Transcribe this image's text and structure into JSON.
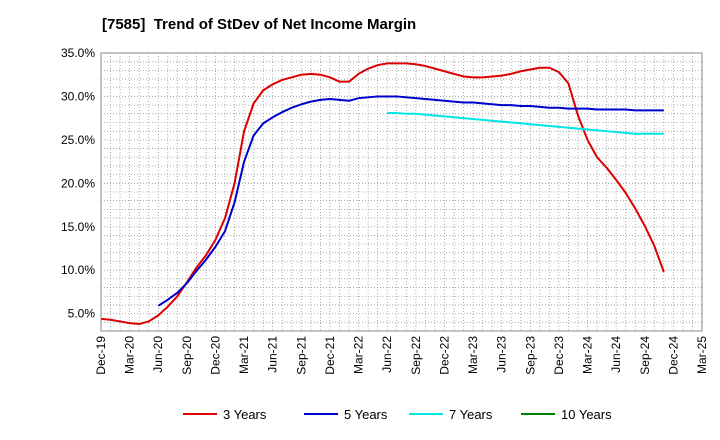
{
  "title": "[7585]  Trend of StDev of Net Income Margin",
  "chart_data": {
    "type": "line",
    "title": "[7585]  Trend of StDev of Net Income Margin",
    "xlabel": "",
    "ylabel": "",
    "ylim": [
      3.0,
      35.0
    ],
    "y_ticks": [
      "5.0%",
      "10.0%",
      "15.0%",
      "20.0%",
      "25.0%",
      "30.0%",
      "35.0%"
    ],
    "y_tick_values": [
      5,
      10,
      15,
      20,
      25,
      30,
      35
    ],
    "x_ticks": [
      "Dec-19",
      "Mar-20",
      "Jun-20",
      "Sep-20",
      "Dec-20",
      "Mar-21",
      "Jun-21",
      "Sep-21",
      "Dec-21",
      "Mar-22",
      "Jun-22",
      "Sep-22",
      "Dec-22",
      "Mar-23",
      "Jun-23",
      "Sep-23",
      "Dec-23",
      "Mar-24",
      "Jun-24",
      "Sep-24",
      "Dec-24",
      "Mar-25"
    ],
    "grid": true,
    "legend_position": "bottom",
    "series": [
      {
        "name": "3 Years",
        "color": "#dd0000",
        "points": [
          [
            "Dec-19",
            4.4
          ],
          [
            "Jan-20",
            4.3
          ],
          [
            "Feb-20",
            4.1
          ],
          [
            "Mar-20",
            3.9
          ],
          [
            "Apr-20",
            3.8
          ],
          [
            "May-20",
            4.1
          ],
          [
            "Jun-20",
            4.8
          ],
          [
            "Jul-20",
            5.8
          ],
          [
            "Aug-20",
            7.0
          ],
          [
            "Sep-20",
            8.6
          ],
          [
            "Oct-20",
            10.3
          ],
          [
            "Nov-20",
            11.7
          ],
          [
            "Dec-20",
            13.5
          ],
          [
            "Jan-21",
            16.0
          ],
          [
            "Feb-21",
            20.0
          ],
          [
            "Mar-21",
            26.0
          ],
          [
            "Apr-21",
            29.2
          ],
          [
            "May-21",
            30.7
          ],
          [
            "Jun-21",
            31.4
          ],
          [
            "Jul-21",
            31.9
          ],
          [
            "Aug-21",
            32.2
          ],
          [
            "Sep-21",
            32.5
          ],
          [
            "Oct-21",
            32.6
          ],
          [
            "Nov-21",
            32.5
          ],
          [
            "Dec-21",
            32.2
          ],
          [
            "Jan-22",
            31.7
          ],
          [
            "Feb-22",
            31.7
          ],
          [
            "Mar-22",
            32.6
          ],
          [
            "Apr-22",
            33.2
          ],
          [
            "May-22",
            33.6
          ],
          [
            "Jun-22",
            33.8
          ],
          [
            "Jul-22",
            33.8
          ],
          [
            "Aug-22",
            33.8
          ],
          [
            "Sep-22",
            33.7
          ],
          [
            "Oct-22",
            33.5
          ],
          [
            "Nov-22",
            33.2
          ],
          [
            "Dec-22",
            32.9
          ],
          [
            "Jan-23",
            32.6
          ],
          [
            "Feb-23",
            32.3
          ],
          [
            "Mar-23",
            32.2
          ],
          [
            "Apr-23",
            32.2
          ],
          [
            "May-23",
            32.3
          ],
          [
            "Jun-23",
            32.4
          ],
          [
            "Jul-23",
            32.6
          ],
          [
            "Aug-23",
            32.9
          ],
          [
            "Sep-23",
            33.1
          ],
          [
            "Oct-23",
            33.3
          ],
          [
            "Nov-23",
            33.3
          ],
          [
            "Dec-23",
            32.8
          ],
          [
            "Jan-24",
            31.5
          ],
          [
            "Feb-24",
            27.8
          ],
          [
            "Mar-24",
            25.0
          ],
          [
            "Apr-24",
            23.0
          ],
          [
            "May-24",
            21.8
          ],
          [
            "Jun-24",
            20.4
          ],
          [
            "Jul-24",
            18.9
          ],
          [
            "Aug-24",
            17.1
          ],
          [
            "Sep-24",
            15.1
          ],
          [
            "Oct-24",
            12.8
          ],
          [
            "Nov-24",
            9.8
          ]
        ]
      },
      {
        "name": "5 Years",
        "color": "#0000cc",
        "points": [
          [
            "Jun-20",
            5.9
          ],
          [
            "Jul-20",
            6.6
          ],
          [
            "Aug-20",
            7.4
          ],
          [
            "Sep-20",
            8.5
          ],
          [
            "Oct-20",
            9.9
          ],
          [
            "Nov-20",
            11.2
          ],
          [
            "Dec-20",
            12.7
          ],
          [
            "Jan-21",
            14.5
          ],
          [
            "Feb-21",
            17.8
          ],
          [
            "Mar-21",
            22.5
          ],
          [
            "Apr-21",
            25.5
          ],
          [
            "May-21",
            26.9
          ],
          [
            "Jun-21",
            27.6
          ],
          [
            "Jul-21",
            28.2
          ],
          [
            "Aug-21",
            28.7
          ],
          [
            "Sep-21",
            29.1
          ],
          [
            "Oct-21",
            29.4
          ],
          [
            "Nov-21",
            29.6
          ],
          [
            "Dec-21",
            29.7
          ],
          [
            "Jan-22",
            29.6
          ],
          [
            "Feb-22",
            29.5
          ],
          [
            "Mar-22",
            29.8
          ],
          [
            "Apr-22",
            29.9
          ],
          [
            "May-22",
            30.0
          ],
          [
            "Jun-22",
            30.0
          ],
          [
            "Jul-22",
            30.0
          ],
          [
            "Aug-22",
            29.9
          ],
          [
            "Sep-22",
            29.8
          ],
          [
            "Oct-22",
            29.7
          ],
          [
            "Nov-22",
            29.6
          ],
          [
            "Dec-22",
            29.5
          ],
          [
            "Jan-23",
            29.4
          ],
          [
            "Feb-23",
            29.3
          ],
          [
            "Mar-23",
            29.3
          ],
          [
            "Apr-23",
            29.2
          ],
          [
            "May-23",
            29.1
          ],
          [
            "Jun-23",
            29.0
          ],
          [
            "Jul-23",
            29.0
          ],
          [
            "Aug-23",
            28.9
          ],
          [
            "Sep-23",
            28.9
          ],
          [
            "Oct-23",
            28.8
          ],
          [
            "Nov-23",
            28.7
          ],
          [
            "Dec-23",
            28.7
          ],
          [
            "Jan-24",
            28.6
          ],
          [
            "Feb-24",
            28.6
          ],
          [
            "Mar-24",
            28.6
          ],
          [
            "Apr-24",
            28.5
          ],
          [
            "May-24",
            28.5
          ],
          [
            "Jun-24",
            28.5
          ],
          [
            "Jul-24",
            28.5
          ],
          [
            "Aug-24",
            28.4
          ],
          [
            "Sep-24",
            28.4
          ],
          [
            "Oct-24",
            28.4
          ],
          [
            "Nov-24",
            28.4
          ]
        ]
      },
      {
        "name": "7 Years",
        "color": "#00e5e5",
        "points": [
          [
            "Jun-22",
            28.1
          ],
          [
            "Jul-22",
            28.1
          ],
          [
            "Aug-22",
            28.0
          ],
          [
            "Sep-22",
            28.0
          ],
          [
            "Oct-22",
            27.9
          ],
          [
            "Nov-22",
            27.8
          ],
          [
            "Dec-22",
            27.7
          ],
          [
            "Jan-23",
            27.6
          ],
          [
            "Feb-23",
            27.5
          ],
          [
            "Mar-23",
            27.4
          ],
          [
            "Apr-23",
            27.3
          ],
          [
            "May-23",
            27.2
          ],
          [
            "Jun-23",
            27.1
          ],
          [
            "Jul-23",
            27.0
          ],
          [
            "Aug-23",
            26.9
          ],
          [
            "Sep-23",
            26.8
          ],
          [
            "Oct-23",
            26.7
          ],
          [
            "Nov-23",
            26.6
          ],
          [
            "Dec-23",
            26.5
          ],
          [
            "Jan-24",
            26.4
          ],
          [
            "Feb-24",
            26.3
          ],
          [
            "Mar-24",
            26.2
          ],
          [
            "Apr-24",
            26.1
          ],
          [
            "May-24",
            26.0
          ],
          [
            "Jun-24",
            25.9
          ],
          [
            "Jul-24",
            25.8
          ],
          [
            "Aug-24",
            25.7
          ],
          [
            "Sep-24",
            25.7
          ],
          [
            "Oct-24",
            25.7
          ],
          [
            "Nov-24",
            25.7
          ]
        ]
      },
      {
        "name": "10 Years",
        "color": "#008000",
        "points": []
      }
    ]
  }
}
